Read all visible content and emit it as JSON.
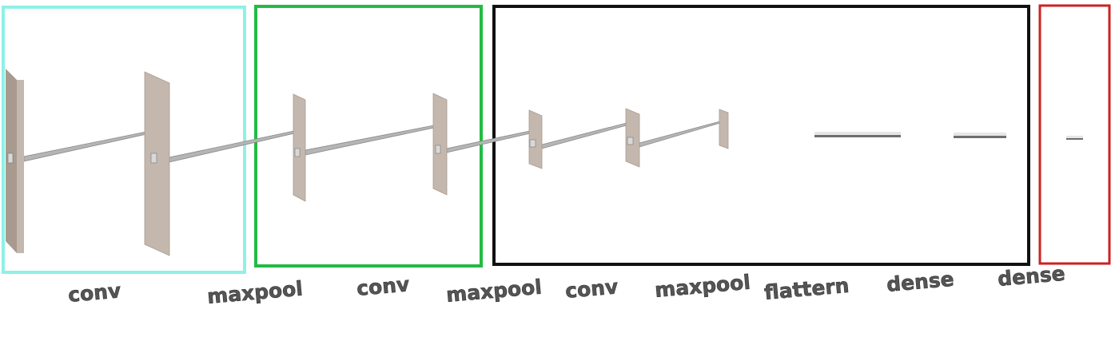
{
  "layers": [
    {
      "label": "conv"
    },
    {
      "label": "maxpool"
    },
    {
      "label": "conv"
    },
    {
      "label": "maxpool"
    },
    {
      "label": "conv"
    },
    {
      "label": "maxpool"
    },
    {
      "label": "flattern"
    },
    {
      "label": "dense"
    },
    {
      "label": "dense"
    }
  ],
  "group_boxes": [
    {
      "color": "#8ff0e6"
    },
    {
      "color": "#22bb44"
    },
    {
      "color": "#111111"
    },
    {
      "color": "#cc2222"
    }
  ],
  "colors": {
    "plane_face": "#c4b8ae",
    "plane_edge": "#a89a8e",
    "beam": "#8a8a8a",
    "label_text": "#555555"
  }
}
